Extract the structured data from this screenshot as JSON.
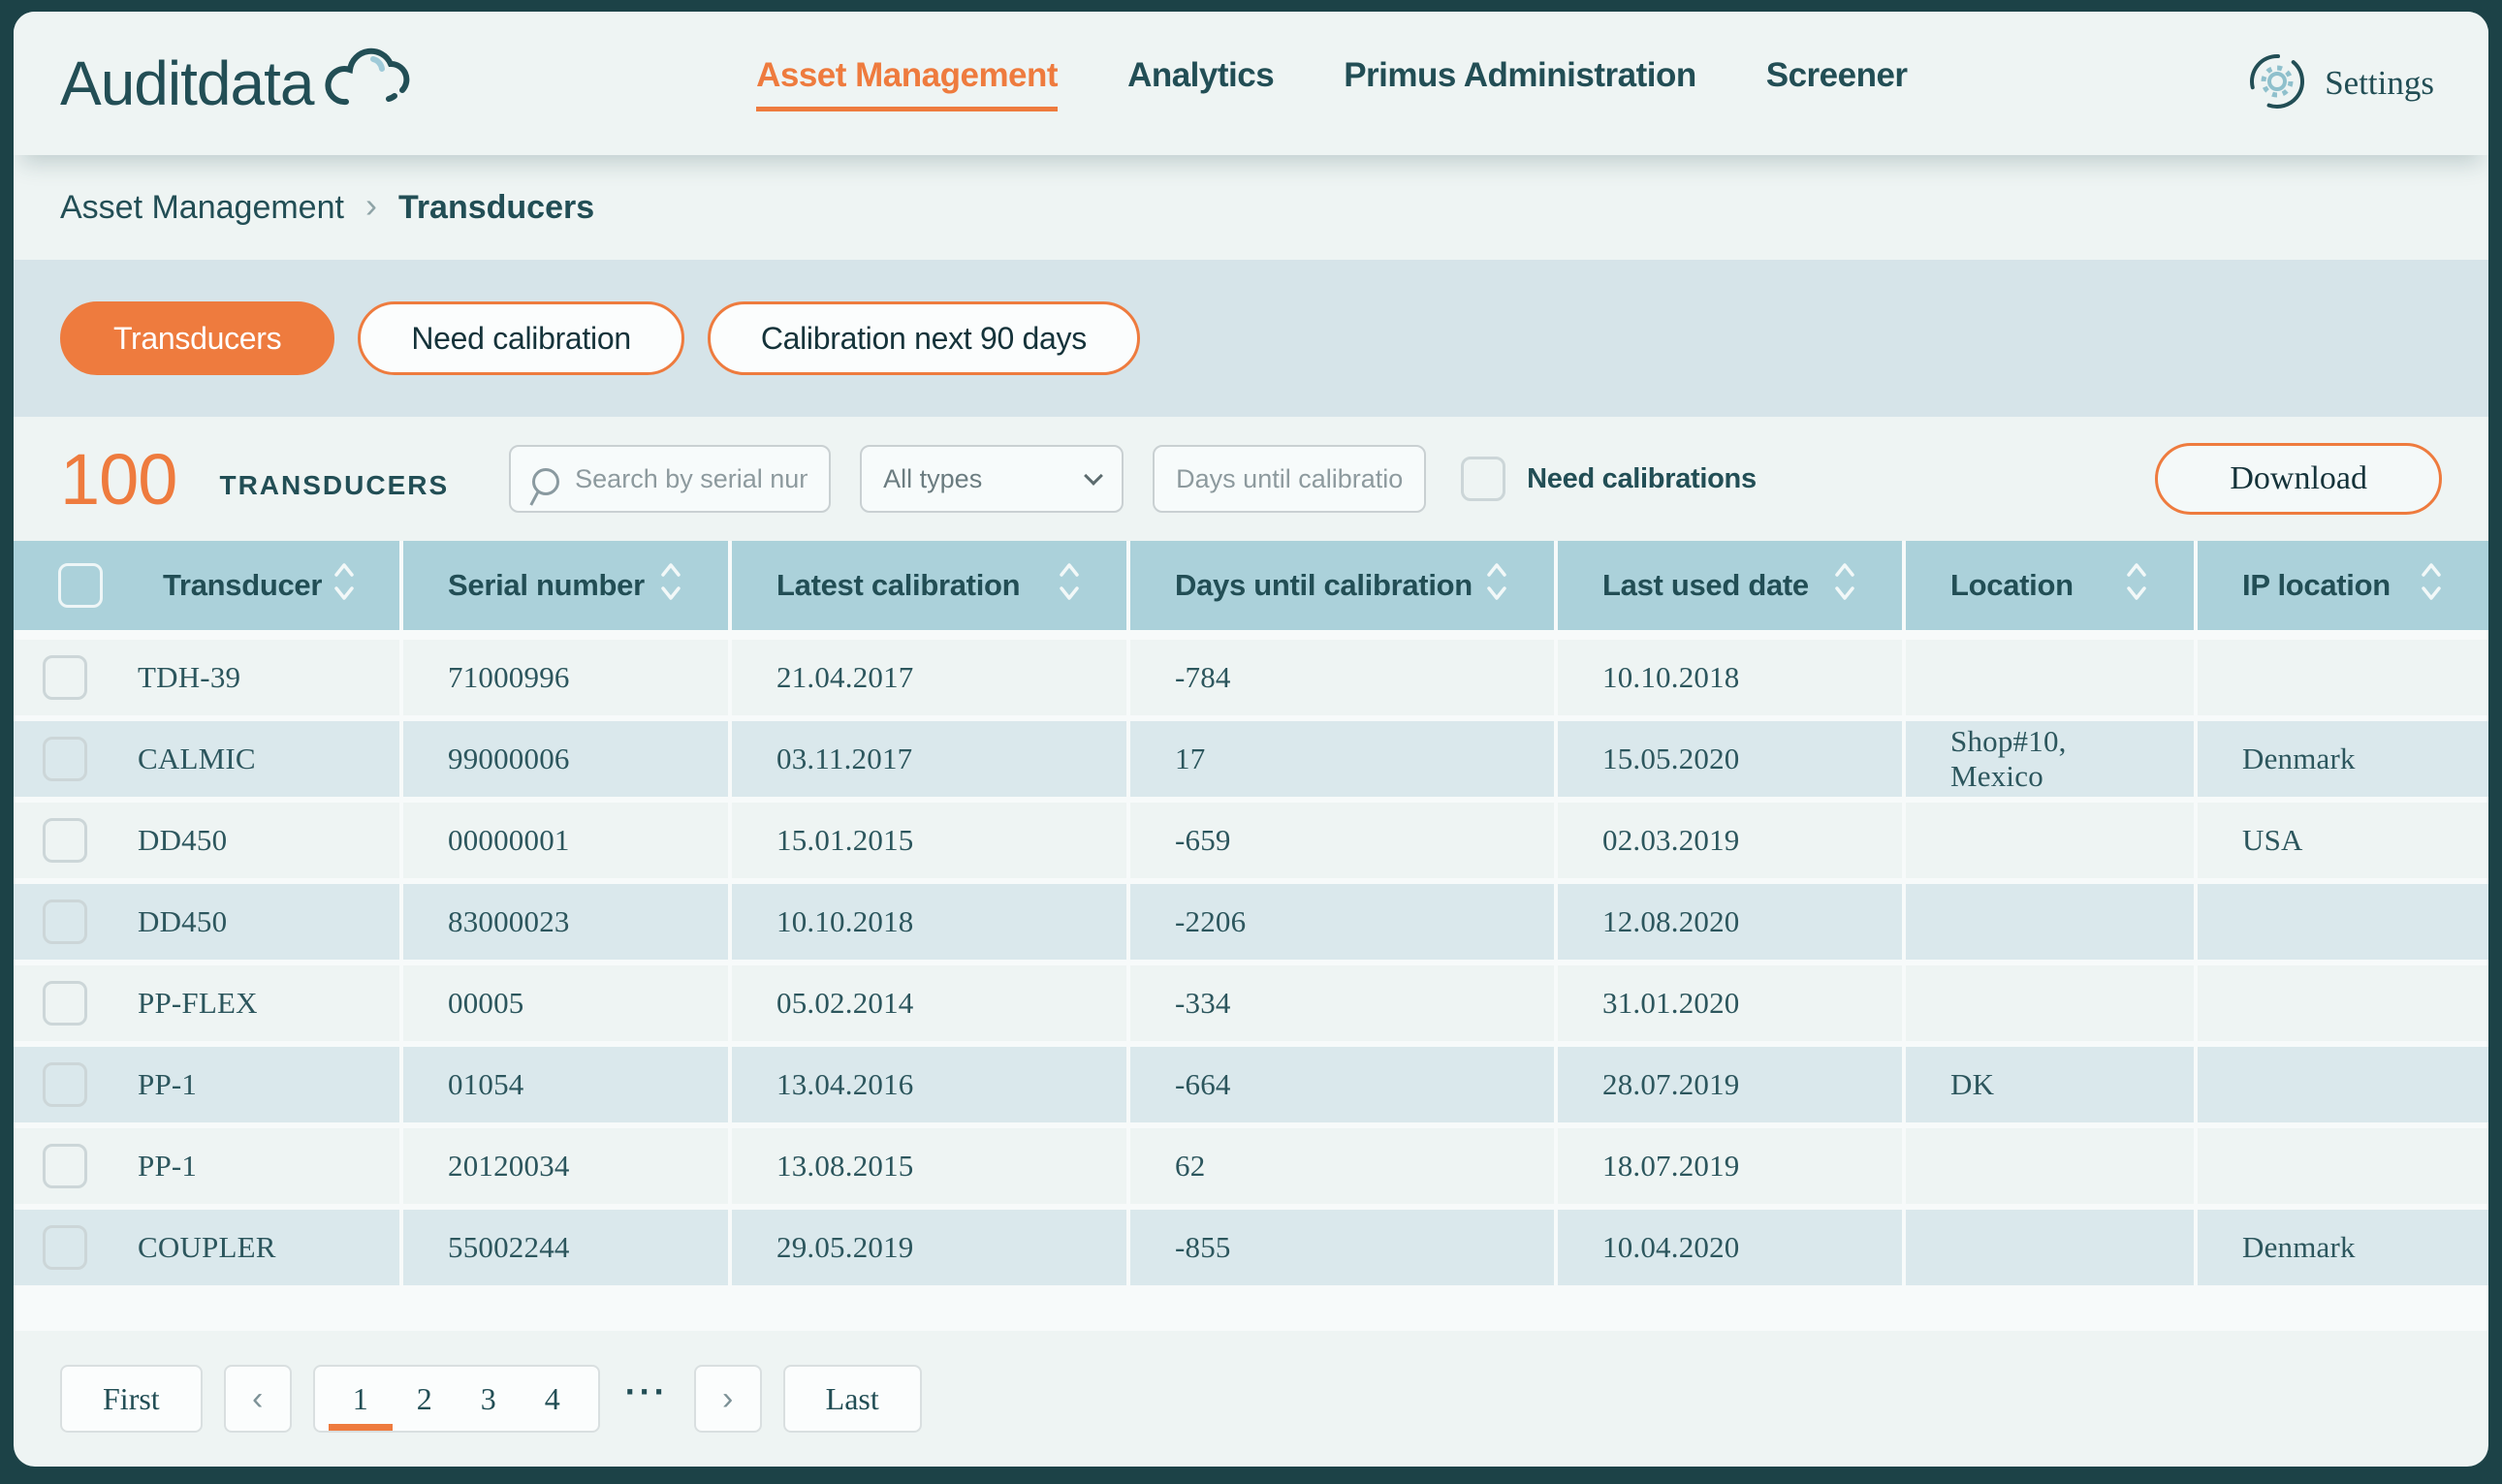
{
  "brand": {
    "name": "Auditdata"
  },
  "nav": {
    "items": [
      {
        "label": "Asset Management",
        "active": true
      },
      {
        "label": "Analytics",
        "active": false
      },
      {
        "label": "Primus Administration",
        "active": false
      },
      {
        "label": "Screener",
        "active": false
      }
    ],
    "settings_label": "Settings"
  },
  "breadcrumb": {
    "parent": "Asset Management",
    "separator": "›",
    "current": "Transducers"
  },
  "filter_tabs": [
    {
      "label": "Transducers",
      "active": true
    },
    {
      "label": "Need calibration",
      "active": false
    },
    {
      "label": "Calibration next 90 days",
      "active": false
    }
  ],
  "toolbar": {
    "count": "100",
    "count_label": "TRANSDUCERS",
    "search_placeholder": "Search by serial number",
    "type_filter_value": "All types",
    "days_filter_placeholder": "Days until calibration",
    "need_calibrations_label": "Need calibrations",
    "download_label": "Download"
  },
  "table": {
    "columns": [
      "Transducer",
      "Serial number",
      "Latest calibration",
      "Days until calibration",
      "Last used date",
      "Location",
      "IP location"
    ],
    "rows": [
      {
        "transducer": "TDH-39",
        "serial": "71000996",
        "latest_calibration": "21.04.2017",
        "days_until": "-784",
        "last_used": "10.10.2018",
        "location": "",
        "ip_location": ""
      },
      {
        "transducer": "CALMIC",
        "serial": "99000006",
        "latest_calibration": "03.11.2017",
        "days_until": "17",
        "last_used": "15.05.2020",
        "location": "Shop#10, Mexico",
        "ip_location": "Denmark"
      },
      {
        "transducer": "DD450",
        "serial": "00000001",
        "latest_calibration": "15.01.2015",
        "days_until": "-659",
        "last_used": "02.03.2019",
        "location": "",
        "ip_location": "USA"
      },
      {
        "transducer": "DD450",
        "serial": "83000023",
        "latest_calibration": "10.10.2018",
        "days_until": "-2206",
        "last_used": "12.08.2020",
        "location": "",
        "ip_location": ""
      },
      {
        "transducer": "PP-FLEX",
        "serial": "00005",
        "latest_calibration": "05.02.2014",
        "days_until": "-334",
        "last_used": "31.01.2020",
        "location": "",
        "ip_location": ""
      },
      {
        "transducer": "PP-1",
        "serial": "01054",
        "latest_calibration": "13.04.2016",
        "days_until": "-664",
        "last_used": "28.07.2019",
        "location": "DK",
        "ip_location": ""
      },
      {
        "transducer": "PP-1",
        "serial": "20120034",
        "latest_calibration": "13.08.2015",
        "days_until": "62",
        "last_used": "18.07.2019",
        "location": "",
        "ip_location": ""
      },
      {
        "transducer": "COUPLER",
        "serial": "55002244",
        "latest_calibration": "29.05.2019",
        "days_until": "-855",
        "last_used": "10.04.2020",
        "location": "",
        "ip_location": "Denmark"
      }
    ]
  },
  "pagination": {
    "first_label": "First",
    "prev_icon": "‹",
    "pages": [
      "1",
      "2",
      "3",
      "4"
    ],
    "active_page": "1",
    "ellipsis": "···",
    "next_icon": "›",
    "last_label": "Last"
  },
  "colors": {
    "accent_orange": "#EE7B3E",
    "dark_teal": "#224E55",
    "table_header_blue": "#ABD1DA",
    "row_even_blue": "#DAE8EC",
    "row_odd_light": "#EEF4F3",
    "filter_band_blue": "#D6E4E9"
  }
}
